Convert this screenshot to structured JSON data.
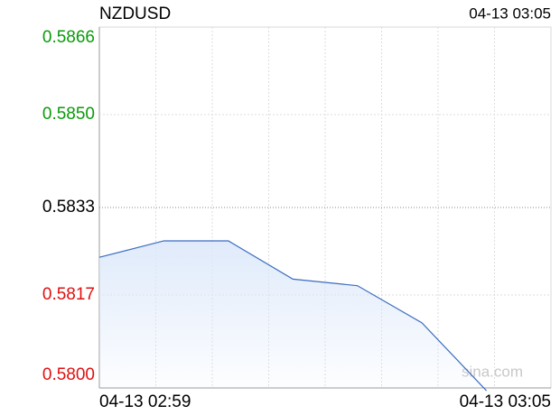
{
  "chart_data": {
    "type": "line",
    "title": "NZDUSD",
    "timestamp": "04-13 03:05",
    "watermark": "sina.com",
    "categories": [
      "04-13 02:59",
      null,
      null,
      null,
      null,
      null,
      "04-13 03:05"
    ],
    "values": [
      0.58239,
      0.58269,
      0.58269,
      0.58199,
      0.58187,
      0.58119,
      0.57995
    ],
    "color": "#3a6cc0",
    "fill_color": "#dce8fa",
    "ylim": [
      0.58,
      0.5866
    ],
    "yticks": [
      {
        "value": 0.58,
        "label": "0.5800"
      },
      {
        "value": 0.5817,
        "label": "0.5817"
      },
      {
        "value": 0.5833,
        "label": "0.5833"
      },
      {
        "value": 0.585,
        "label": "0.5850"
      },
      {
        "value": 0.5866,
        "label": "0.5866"
      }
    ],
    "reference_line": 0.5833,
    "up_color": "#0a9a0a",
    "down_color": "#e01010",
    "grid": true
  }
}
